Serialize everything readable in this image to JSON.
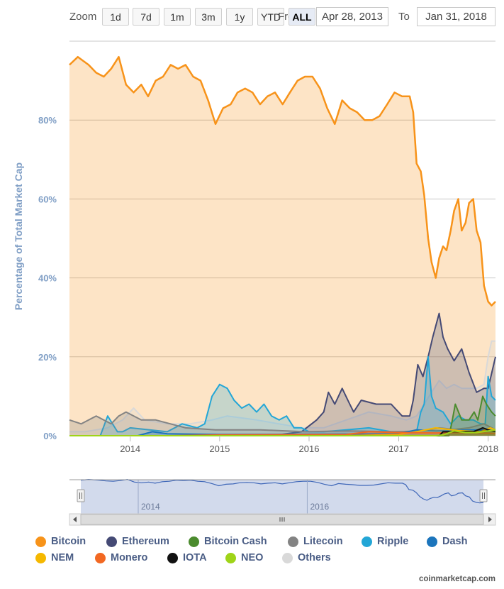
{
  "toolbar": {
    "zoom_label": "Zoom",
    "buttons": [
      "1d",
      "7d",
      "1m",
      "3m",
      "1y",
      "YTD",
      "ALL"
    ],
    "active_button": "ALL",
    "from_label": "From",
    "from_value": "Apr 28, 2013",
    "to_label": "To",
    "to_value": "Jan 31, 2018"
  },
  "credits": "coinmarketcap.com",
  "chart_data": {
    "type": "area",
    "title": "",
    "ylabel": "Percentage of Total Market Cap",
    "xlabel": "",
    "ylim": [
      0,
      100
    ],
    "yticks": [
      "0%",
      "20%",
      "40%",
      "60%",
      "80%"
    ],
    "xticks": [
      "2014",
      "2015",
      "2016",
      "2017",
      "2018"
    ],
    "x_range": [
      "2013-04-28",
      "2018-01-31"
    ],
    "grid": true,
    "legend_position": "bottom",
    "series": [
      {
        "name": "Bitcoin",
        "color": "#f7931a",
        "x": [
          "2013-04-28",
          "2013-06-01",
          "2013-07-15",
          "2013-08-15",
          "2013-09-15",
          "2013-10-15",
          "2013-11-15",
          "2013-12-15",
          "2014-01-15",
          "2014-02-15",
          "2014-03-15",
          "2014-04-15",
          "2014-05-15",
          "2014-06-15",
          "2014-07-15",
          "2014-08-15",
          "2014-09-15",
          "2014-10-15",
          "2014-11-15",
          "2014-12-15",
          "2015-01-15",
          "2015-02-15",
          "2015-03-15",
          "2015-04-15",
          "2015-05-15",
          "2015-06-15",
          "2015-07-15",
          "2015-08-15",
          "2015-09-15",
          "2015-10-15",
          "2015-11-15",
          "2015-12-15",
          "2016-01-15",
          "2016-02-15",
          "2016-03-15",
          "2016-04-15",
          "2016-05-15",
          "2016-06-15",
          "2016-07-15",
          "2016-08-15",
          "2016-09-15",
          "2016-10-15",
          "2016-11-15",
          "2016-12-15",
          "2017-01-15",
          "2017-02-15",
          "2017-03-01",
          "2017-03-15",
          "2017-04-01",
          "2017-04-15",
          "2017-05-01",
          "2017-05-15",
          "2017-06-01",
          "2017-06-15",
          "2017-07-01",
          "2017-07-15",
          "2017-08-01",
          "2017-08-15",
          "2017-09-01",
          "2017-09-15",
          "2017-10-01",
          "2017-10-15",
          "2017-11-01",
          "2017-11-15",
          "2017-12-01",
          "2017-12-15",
          "2018-01-01",
          "2018-01-15",
          "2018-01-31"
        ],
        "values": [
          94,
          96,
          94,
          92,
          91,
          93,
          96,
          89,
          87,
          89,
          86,
          90,
          91,
          94,
          93,
          94,
          91,
          90,
          85,
          79,
          83,
          84,
          87,
          88,
          87,
          84,
          86,
          87,
          84,
          87,
          90,
          91,
          91,
          88,
          83,
          79,
          85,
          83,
          82,
          80,
          80,
          81,
          84,
          87,
          86,
          86,
          82,
          69,
          67,
          61,
          50,
          44,
          40,
          45,
          48,
          47,
          52,
          57,
          60,
          52,
          54,
          59,
          60,
          52,
          49,
          38,
          34,
          33,
          34
        ]
      },
      {
        "name": "Ethereum",
        "color": "#454a75",
        "x": [
          "2013-04-28",
          "2015-08-01",
          "2015-12-01",
          "2016-02-01",
          "2016-03-01",
          "2016-03-20",
          "2016-04-15",
          "2016-05-15",
          "2016-06-15",
          "2016-07-01",
          "2016-08-01",
          "2016-10-01",
          "2016-12-01",
          "2017-01-15",
          "2017-02-15",
          "2017-03-01",
          "2017-03-20",
          "2017-04-10",
          "2017-05-01",
          "2017-05-20",
          "2017-06-15",
          "2017-07-01",
          "2017-07-20",
          "2017-08-15",
          "2017-09-15",
          "2017-10-15",
          "2017-11-15",
          "2017-12-15",
          "2018-01-01",
          "2018-01-31"
        ],
        "values": [
          0,
          0,
          1,
          4,
          6,
          11,
          8,
          12,
          8,
          6,
          9,
          8,
          8,
          5,
          5,
          9,
          18,
          15,
          20,
          25,
          31,
          25,
          22,
          19,
          22,
          16,
          11,
          12,
          12,
          20
        ]
      },
      {
        "name": "Bitcoin Cash",
        "color": "#4b8b2e",
        "x": [
          "2013-04-28",
          "2017-07-25",
          "2017-08-05",
          "2017-08-20",
          "2017-09-15",
          "2017-10-15",
          "2017-11-05",
          "2017-11-20",
          "2017-12-10",
          "2017-12-25",
          "2018-01-15",
          "2018-01-31"
        ],
        "values": [
          0,
          0,
          3,
          8,
          4,
          4,
          6,
          4,
          10,
          8,
          6,
          5
        ]
      },
      {
        "name": "Litecoin",
        "color": "#838383",
        "x": [
          "2013-04-28",
          "2013-06-15",
          "2013-08-15",
          "2013-10-15",
          "2013-11-15",
          "2013-12-15",
          "2014-02-15",
          "2014-04-15",
          "2014-08-15",
          "2014-12-15",
          "2015-06-15",
          "2015-12-15",
          "2016-06-15",
          "2016-12-15",
          "2017-04-15",
          "2017-06-15",
          "2017-08-15",
          "2017-10-15",
          "2017-12-15",
          "2018-01-31"
        ],
        "values": [
          4,
          3,
          5,
          3,
          5,
          6,
          4,
          4,
          2,
          1.5,
          1.5,
          1,
          1.2,
          1,
          1.2,
          2,
          1.6,
          2,
          3,
          1.5
        ]
      },
      {
        "name": "Ripple",
        "color": "#23a6d6",
        "x": [
          "2013-04-28",
          "2013-09-01",
          "2013-10-01",
          "2013-11-10",
          "2013-12-01",
          "2014-01-01",
          "2014-06-01",
          "2014-08-01",
          "2014-10-01",
          "2014-11-01",
          "2014-12-01",
          "2015-01-01",
          "2015-02-01",
          "2015-03-01",
          "2015-04-01",
          "2015-05-01",
          "2015-06-01",
          "2015-07-01",
          "2015-08-01",
          "2015-09-01",
          "2015-10-01",
          "2015-11-01",
          "2015-12-01",
          "2016-01-01",
          "2016-03-01",
          "2016-06-01",
          "2016-09-01",
          "2016-12-01",
          "2017-01-15",
          "2017-02-15",
          "2017-03-15",
          "2017-04-01",
          "2017-04-15",
          "2017-05-01",
          "2017-05-15",
          "2017-06-01",
          "2017-07-01",
          "2017-08-01",
          "2017-09-01",
          "2017-10-01",
          "2017-11-01",
          "2017-12-01",
          "2017-12-20",
          "2018-01-01",
          "2018-01-15",
          "2018-01-31"
        ],
        "values": [
          0,
          0,
          5,
          1,
          1,
          2,
          1,
          3,
          2,
          3,
          10,
          13,
          12,
          9,
          7,
          8,
          6,
          8,
          5,
          4,
          5,
          2,
          2,
          1,
          1,
          1.5,
          2,
          1,
          1,
          1,
          1,
          6,
          8,
          20,
          10,
          7,
          6,
          3,
          5,
          4,
          4,
          3,
          3,
          15,
          10,
          9
        ]
      },
      {
        "name": "Dash",
        "color": "#1c75bc",
        "x": [
          "2013-04-28",
          "2014-02-01",
          "2014-04-01",
          "2014-06-01",
          "2015-01-01",
          "2016-06-01",
          "2017-01-01",
          "2017-03-15",
          "2017-06-01",
          "2017-09-01",
          "2017-12-01",
          "2018-01-31"
        ],
        "values": [
          0,
          0,
          1,
          0.5,
          0.3,
          0.4,
          0.5,
          1.5,
          1.2,
          1.4,
          1.5,
          1.2
        ]
      },
      {
        "name": "NEM",
        "color": "#f5b800",
        "x": [
          "2013-04-28",
          "2016-06-01",
          "2017-01-01",
          "2017-03-15",
          "2017-06-01",
          "2017-09-01",
          "2017-12-01",
          "2018-01-10",
          "2018-01-31"
        ],
        "values": [
          0,
          0,
          0.3,
          1,
          2,
          1.3,
          1,
          2,
          1.5
        ]
      },
      {
        "name": "Monero",
        "color": "#f26822",
        "x": [
          "2013-04-28",
          "2014-06-01",
          "2015-01-01",
          "2016-06-01",
          "2016-09-01",
          "2017-01-01",
          "2017-06-01",
          "2017-09-01",
          "2017-12-01",
          "2018-01-31"
        ],
        "values": [
          0,
          0,
          0.2,
          0.3,
          1,
          0.8,
          0.7,
          0.8,
          0.7,
          0.6
        ]
      },
      {
        "name": "IOTA",
        "color": "#111111",
        "x": [
          "2013-04-28",
          "2017-06-15",
          "2017-07-01",
          "2017-09-01",
          "2017-11-01",
          "2017-12-10",
          "2018-01-01",
          "2018-01-31"
        ],
        "values": [
          0,
          0,
          1,
          1,
          1,
          2,
          1.5,
          1
        ]
      },
      {
        "name": "NEO",
        "color": "#9fd418",
        "x": [
          "2013-04-28",
          "2017-06-01",
          "2017-07-01",
          "2017-08-15",
          "2017-10-01",
          "2017-11-15",
          "2018-01-01",
          "2018-01-31"
        ],
        "values": [
          0,
          0,
          0.2,
          1.2,
          0.8,
          0.8,
          1.2,
          1.5
        ]
      },
      {
        "name": "Others",
        "color": "#d9d9d9",
        "x": [
          "2013-04-28",
          "2013-07-01",
          "2013-10-01",
          "2013-12-01",
          "2014-01-15",
          "2014-03-01",
          "2014-06-01",
          "2014-09-01",
          "2014-12-01",
          "2015-02-01",
          "2015-06-01",
          "2015-09-01",
          "2015-12-01",
          "2016-03-01",
          "2016-06-01",
          "2016-09-01",
          "2016-12-01",
          "2017-02-01",
          "2017-03-15",
          "2017-04-15",
          "2017-05-15",
          "2017-06-15",
          "2017-07-15",
          "2017-08-15",
          "2017-09-15",
          "2017-10-15",
          "2017-11-15",
          "2017-12-15",
          "2018-01-01",
          "2018-01-15",
          "2018-01-31"
        ],
        "values": [
          1,
          1,
          2,
          4,
          7,
          4,
          3,
          3,
          4,
          5,
          4,
          3,
          2,
          2,
          4,
          6,
          5,
          4,
          5,
          8,
          11,
          14,
          12,
          13,
          12,
          12,
          12,
          13,
          20,
          24,
          24
        ]
      }
    ],
    "navigator": {
      "xticks": [
        "2014",
        "2016"
      ],
      "series_ref": "Bitcoin"
    }
  }
}
